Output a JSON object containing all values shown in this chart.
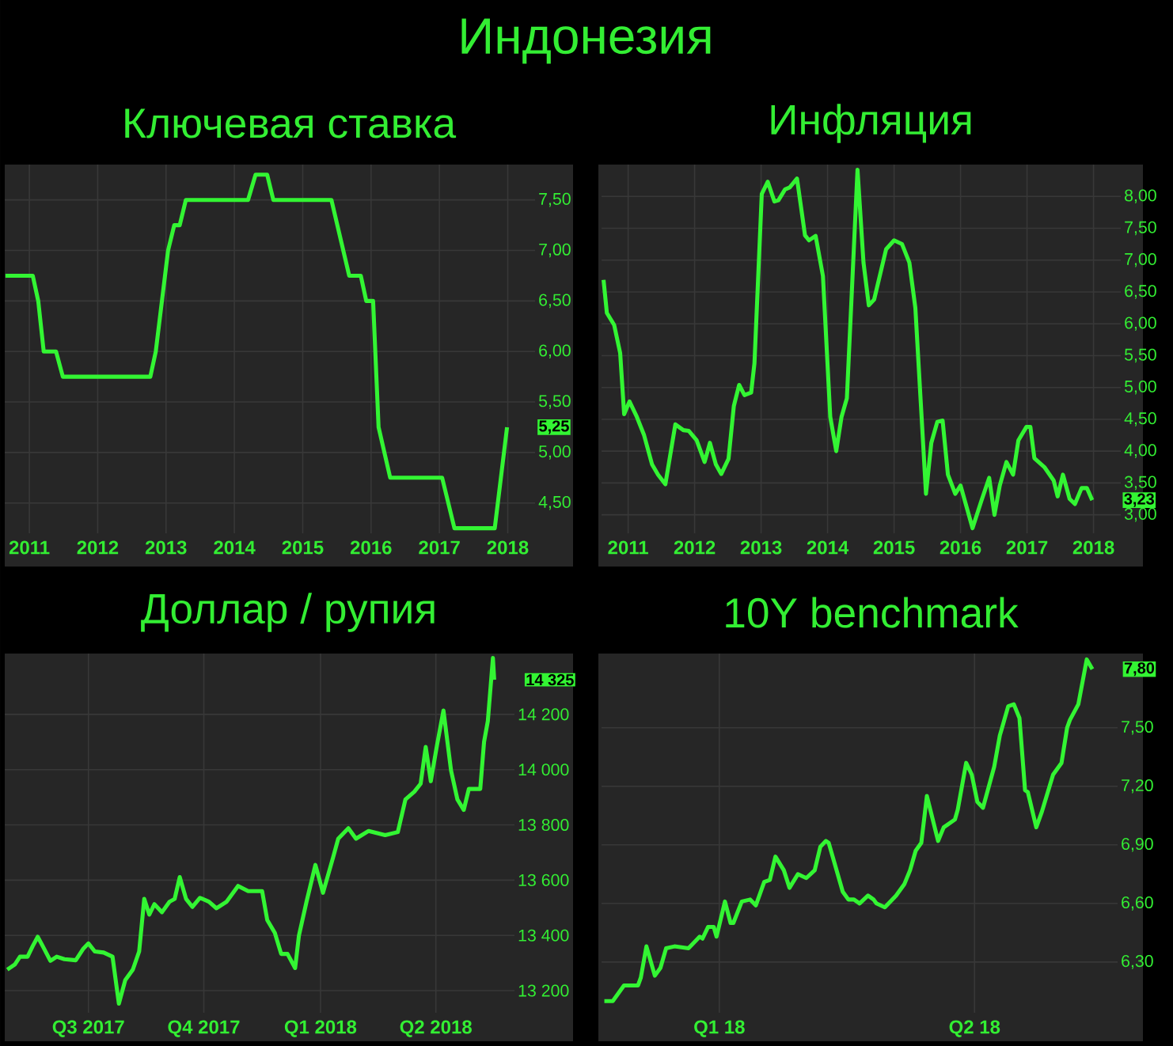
{
  "chart_data": [
    {
      "type": "other",
      "title": "Индонезия"
    },
    {
      "type": "line",
      "title": "Ключевая ставка",
      "color": "#33f533",
      "grid": true,
      "x": [
        2011.15,
        2011.55,
        2011.63,
        2011.71,
        2011.89,
        2011.99,
        2013.27,
        2013.35,
        2013.53,
        2013.62,
        2013.7,
        2013.79,
        2014.7,
        2014.81,
        2014.98,
        2015.07,
        2015.92,
        2016.18,
        2016.35,
        2016.43,
        2016.53,
        2016.61,
        2016.78,
        2017.54,
        2017.72,
        2018.31,
        2018.49
      ],
      "values": [
        6.75,
        6.75,
        6.5,
        6.0,
        6.0,
        5.75,
        5.75,
        6.0,
        7.0,
        7.25,
        7.25,
        7.5,
        7.5,
        7.75,
        7.75,
        7.5,
        7.5,
        6.75,
        6.75,
        6.5,
        6.5,
        5.25,
        4.75,
        4.75,
        4.25,
        4.25,
        5.25
      ],
      "xlim": [
        2011.14,
        2018.9
      ],
      "xticks": [
        {
          "value": 2011.5,
          "label": "2011"
        },
        {
          "value": 2012.5,
          "label": "2012"
        },
        {
          "value": 2013.5,
          "label": "2013"
        },
        {
          "value": 2014.5,
          "label": "2014"
        },
        {
          "value": 2015.5,
          "label": "2015"
        },
        {
          "value": 2016.5,
          "label": "2016"
        },
        {
          "value": 2017.5,
          "label": "2017"
        },
        {
          "value": 2018.5,
          "label": "2018"
        }
      ],
      "ylim": [
        4.2,
        7.85
      ],
      "yticks": [
        {
          "value": 4.5,
          "label": "4,50"
        },
        {
          "value": 5.0,
          "label": "5,00"
        },
        {
          "value": 5.5,
          "label": "5,50"
        },
        {
          "value": 6.0,
          "label": "6,00"
        },
        {
          "value": 6.5,
          "label": "6,50"
        },
        {
          "value": 7.0,
          "label": "7,00"
        },
        {
          "value": 7.5,
          "label": "7,50"
        }
      ],
      "annotations": [
        {
          "text": "5,25",
          "x": 2018.49,
          "y": 5.25
        }
      ]
    },
    {
      "type": "line",
      "title": "Инфляция",
      "color": "#33f533",
      "grid": true,
      "x": [
        2011.13,
        2011.18,
        2011.29,
        2011.38,
        2011.44,
        2011.52,
        2011.63,
        2011.74,
        2011.86,
        2011.95,
        2012.06,
        2012.21,
        2012.33,
        2012.41,
        2012.53,
        2012.65,
        2012.73,
        2012.82,
        2012.9,
        2013.01,
        2013.09,
        2013.17,
        2013.25,
        2013.35,
        2013.4,
        2013.51,
        2013.6,
        2013.7,
        2013.76,
        2013.86,
        2013.93,
        2014.04,
        2014.16,
        2014.22,
        2014.32,
        2014.43,
        2014.54,
        2014.63,
        2014.71,
        2014.79,
        2014.95,
        2015.04,
        2015.12,
        2015.2,
        2015.38,
        2015.5,
        2015.62,
        2015.73,
        2015.82,
        2015.98,
        2016.06,
        2016.15,
        2016.23,
        2016.31,
        2016.42,
        2016.5,
        2016.68,
        2016.81,
        2016.93,
        2017.01,
        2017.09,
        2017.19,
        2017.29,
        2017.37,
        2017.49,
        2017.55,
        2017.61,
        2017.76,
        2017.9,
        2017.96,
        2018.04,
        2018.14,
        2018.22,
        2018.32,
        2018.4,
        2018.48
      ],
      "values": [
        6.69,
        6.17,
        5.98,
        5.54,
        4.58,
        4.78,
        4.54,
        4.25,
        3.79,
        3.63,
        3.48,
        4.42,
        4.33,
        4.32,
        4.17,
        3.83,
        4.13,
        3.79,
        3.64,
        3.88,
        4.71,
        5.04,
        4.88,
        4.92,
        5.38,
        8.04,
        8.23,
        7.92,
        7.94,
        8.11,
        8.14,
        8.28,
        7.39,
        7.31,
        7.38,
        6.75,
        4.54,
        4.0,
        4.54,
        4.83,
        8.42,
        6.96,
        6.29,
        6.38,
        7.17,
        7.31,
        7.25,
        6.96,
        6.25,
        3.33,
        4.13,
        4.46,
        4.48,
        3.63,
        3.33,
        3.46,
        2.79,
        3.21,
        3.58,
        3.0,
        3.46,
        3.83,
        3.63,
        4.17,
        4.38,
        4.38,
        3.89,
        3.75,
        3.54,
        3.29,
        3.63,
        3.25,
        3.17,
        3.42,
        3.42,
        3.23
      ],
      "xlim": [
        2011.1,
        2018.91
      ],
      "xticks": [
        {
          "value": 2011.5,
          "label": "2011"
        },
        {
          "value": 2012.5,
          "label": "2012"
        },
        {
          "value": 2013.5,
          "label": "2013"
        },
        {
          "value": 2014.5,
          "label": "2014"
        },
        {
          "value": 2015.5,
          "label": "2015"
        },
        {
          "value": 2016.5,
          "label": "2016"
        },
        {
          "value": 2017.5,
          "label": "2017"
        },
        {
          "value": 2018.5,
          "label": "2018"
        }
      ],
      "ylim": [
        2.71,
        8.5
      ],
      "yticks": [
        {
          "value": 3.0,
          "label": "3,00"
        },
        {
          "value": 3.5,
          "label": "3,50"
        },
        {
          "value": 4.0,
          "label": "4,00"
        },
        {
          "value": 4.5,
          "label": "4,50"
        },
        {
          "value": 5.0,
          "label": "5,00"
        },
        {
          "value": 5.5,
          "label": "5,50"
        },
        {
          "value": 6.0,
          "label": "6,00"
        },
        {
          "value": 6.5,
          "label": "6,50"
        },
        {
          "value": 7.0,
          "label": "7,00"
        },
        {
          "value": 7.5,
          "label": "7,50"
        },
        {
          "value": 8.0,
          "label": "8,00"
        }
      ],
      "annotations": [
        {
          "text": "3,23",
          "x": 2018.48,
          "y": 3.23
        }
      ]
    },
    {
      "type": "line",
      "title": "Доллар / рупия",
      "color": "#33f533",
      "grid": true,
      "x": [
        "2017-06-12",
        "2017-06-18",
        "2017-06-22",
        "2017-06-28",
        "2017-07-02",
        "2017-07-06",
        "2017-07-10",
        "2017-07-16",
        "2017-07-21",
        "2017-07-27",
        "2017-08-05",
        "2017-08-11",
        "2017-08-15",
        "2017-08-20",
        "2017-08-27",
        "2017-09-03",
        "2017-09-08",
        "2017-09-13",
        "2017-09-19",
        "2017-09-24",
        "2017-09-28",
        "2017-10-02",
        "2017-10-06",
        "2017-10-12",
        "2017-10-18",
        "2017-10-22",
        "2017-10-26",
        "2017-10-31",
        "2017-11-05",
        "2017-11-11",
        "2017-11-18",
        "2017-11-24",
        "2017-12-02",
        "2017-12-11",
        "2017-12-19",
        "2017-12-30",
        "2018-01-03",
        "2018-01-09",
        "2018-01-14",
        "2018-01-19",
        "2018-01-25",
        "2018-01-28",
        "2018-02-03",
        "2018-02-10",
        "2018-02-16",
        "2018-02-24",
        "2018-02-28",
        "2018-03-08",
        "2018-03-14",
        "2018-03-24",
        "2018-04-06",
        "2018-04-16",
        "2018-04-22",
        "2018-04-29",
        "2018-05-04",
        "2018-05-08",
        "2018-05-12",
        "2018-05-17",
        "2018-05-22",
        "2018-05-28",
        "2018-06-02",
        "2018-06-07",
        "2018-06-11",
        "2018-06-20",
        "2018-06-23",
        "2018-06-26",
        "2018-06-30",
        "2018-07-01"
      ],
      "values": [
        13276,
        13295,
        13323,
        13323,
        13361,
        13395,
        13361,
        13308,
        13323,
        13314,
        13310,
        13352,
        13371,
        13342,
        13338,
        13323,
        13153,
        13238,
        13276,
        13342,
        13532,
        13475,
        13513,
        13484,
        13522,
        13532,
        13611,
        13532,
        13503,
        13536,
        13522,
        13498,
        13522,
        13579,
        13560,
        13560,
        13456,
        13409,
        13333,
        13333,
        13282,
        13399,
        13522,
        13655,
        13554,
        13683,
        13750,
        13788,
        13750,
        13778,
        13763,
        13774,
        13892,
        13920,
        13949,
        14082,
        13958,
        14091,
        14214,
        13996,
        13892,
        13854,
        13930,
        13930,
        14100,
        14176,
        14404,
        14325
      ],
      "xlim": [
        "2017-06-10",
        "2018-07-17"
      ],
      "xticks": [
        {
          "value": "2017-08-15",
          "label": "Q3 2017"
        },
        {
          "value": "2017-11-14",
          "label": "Q4 2017"
        },
        {
          "value": "2018-02-14",
          "label": "Q1 2018"
        },
        {
          "value": "2018-05-16",
          "label": "Q2 2018"
        }
      ],
      "ylim": [
        13120,
        14420
      ],
      "yticks": [
        {
          "value": 13200,
          "label": "13 200"
        },
        {
          "value": 13400,
          "label": "13 400"
        },
        {
          "value": 13600,
          "label": "13 600"
        },
        {
          "value": 13800,
          "label": "13 800"
        },
        {
          "value": 14000,
          "label": "14 000"
        },
        {
          "value": 14200,
          "label": "14 200"
        }
      ],
      "annotations": [
        {
          "text": "14 325",
          "x": "2018-07-01",
          "y": 14325
        }
      ]
    },
    {
      "type": "line",
      "title": "10Y benchmark",
      "color": "#33f533",
      "grid": true,
      "x": [
        "2018-01-04",
        "2018-01-07",
        "2018-01-11",
        "2018-01-13",
        "2018-01-16",
        "2018-01-17",
        "2018-01-19",
        "2018-01-20",
        "2018-01-22",
        "2018-01-24",
        "2018-01-26",
        "2018-01-29",
        "2018-02-03",
        "2018-02-07",
        "2018-02-08",
        "2018-02-10",
        "2018-02-12",
        "2018-02-13",
        "2018-02-16",
        "2018-02-18",
        "2018-02-19",
        "2018-02-22",
        "2018-02-25",
        "2018-02-27",
        "2018-03-02",
        "2018-03-04",
        "2018-03-06",
        "2018-03-09",
        "2018-03-11",
        "2018-03-14",
        "2018-03-17",
        "2018-03-20",
        "2018-03-22",
        "2018-03-24",
        "2018-03-25",
        "2018-03-30",
        "2018-04-01",
        "2018-04-03",
        "2018-04-05",
        "2018-04-08",
        "2018-04-10",
        "2018-04-11",
        "2018-04-14",
        "2018-04-18",
        "2018-04-21",
        "2018-04-23",
        "2018-04-25",
        "2018-04-27",
        "2018-04-29",
        "2018-05-03",
        "2018-05-05",
        "2018-05-09",
        "2018-05-10",
        "2018-05-13",
        "2018-05-15",
        "2018-05-17",
        "2018-05-19",
        "2018-05-23",
        "2018-05-25",
        "2018-05-28",
        "2018-05-30",
        "2018-06-01",
        "2018-06-03",
        "2018-06-04",
        "2018-06-07",
        "2018-06-09",
        "2018-06-13",
        "2018-06-16",
        "2018-06-18",
        "2018-06-19",
        "2018-06-22",
        "2018-06-25",
        "2018-06-27"
      ],
      "values": [
        6.1,
        6.1,
        6.18,
        6.18,
        6.18,
        6.22,
        6.38,
        6.33,
        6.23,
        6.27,
        6.37,
        6.38,
        6.37,
        6.43,
        6.42,
        6.48,
        6.48,
        6.43,
        6.61,
        6.5,
        6.5,
        6.61,
        6.62,
        6.59,
        6.71,
        6.72,
        6.84,
        6.77,
        6.68,
        6.75,
        6.73,
        6.77,
        6.89,
        6.92,
        6.91,
        6.66,
        6.62,
        6.62,
        6.6,
        6.64,
        6.62,
        6.6,
        6.58,
        6.64,
        6.7,
        6.77,
        6.87,
        6.91,
        7.15,
        6.92,
        6.99,
        7.03,
        7.08,
        7.32,
        7.26,
        7.12,
        7.09,
        7.3,
        7.46,
        7.61,
        7.62,
        7.55,
        7.18,
        7.17,
        6.99,
        7.07,
        7.26,
        7.32,
        7.5,
        7.54,
        7.62,
        7.85,
        7.8
      ],
      "xlim": [
        "2018-01-03",
        "2018-07-06"
      ],
      "xticks": [
        {
          "value": "2018-02-14",
          "label": "Q1 18"
        },
        {
          "value": "2018-05-16",
          "label": "Q2 18"
        }
      ],
      "ylim": [
        6.04,
        7.88
      ],
      "yticks": [
        {
          "value": 6.3,
          "label": "6,30"
        },
        {
          "value": 6.6,
          "label": "6,60"
        },
        {
          "value": 6.9,
          "label": "6,90"
        },
        {
          "value": 7.2,
          "label": "7,20"
        },
        {
          "value": 7.5,
          "label": "7,50"
        }
      ],
      "annotations": [
        {
          "text": "7,80",
          "x": "2018-06-27",
          "y": 7.8
        }
      ]
    }
  ]
}
